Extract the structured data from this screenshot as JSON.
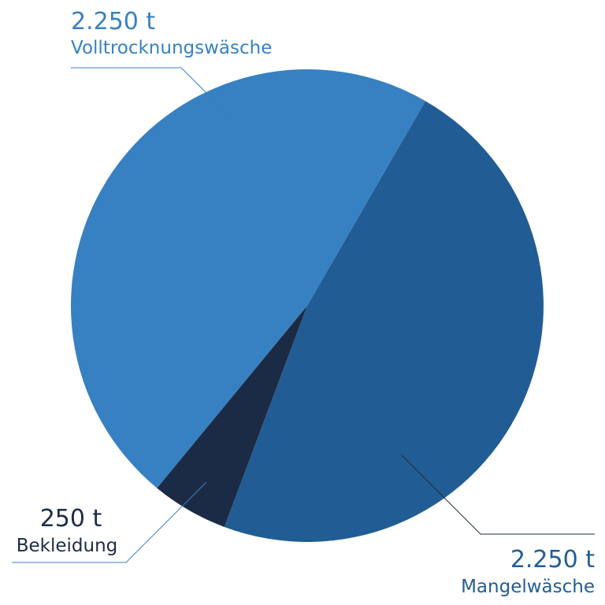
{
  "chart_data": {
    "type": "pie",
    "title": "",
    "unit": "t",
    "slices": [
      {
        "name": "Volltrocknungswäsche",
        "value": 2250,
        "value_label": "2.250 t",
        "color": "#3781c2"
      },
      {
        "name": "Mangelwäsche",
        "value": 2250,
        "value_label": "2.250 t",
        "color": "#215d94"
      },
      {
        "name": "Bekleidung",
        "value": 250,
        "value_label": "250 t",
        "color": "#1c2b45"
      }
    ]
  }
}
